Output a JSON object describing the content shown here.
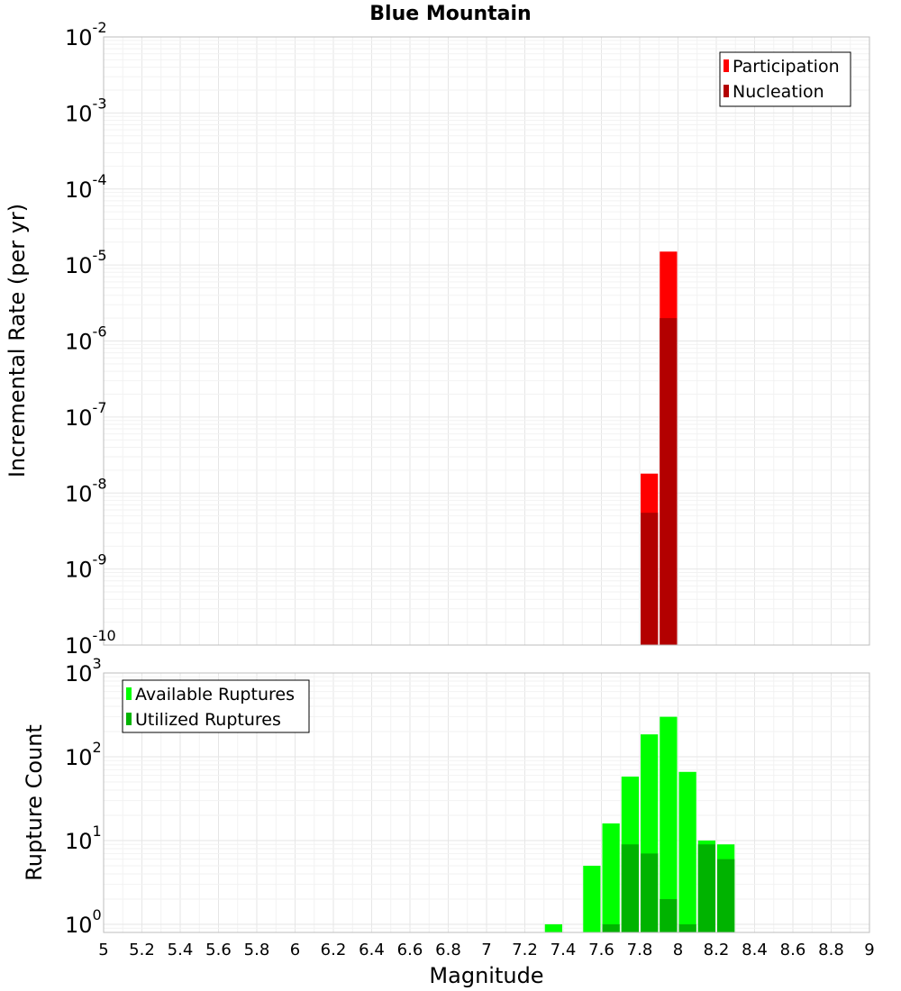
{
  "chart_data": [
    {
      "type": "bar",
      "title": "Blue Mountain",
      "xlabel": "Magnitude",
      "ylabel": "Incremental Rate (per yr)",
      "yscale": "log",
      "ylim": [
        1e-10,
        0.01
      ],
      "xlim": [
        5,
        9
      ],
      "grid": true,
      "legend_position": "top-right",
      "series": [
        {
          "name": "Participation",
          "color": "#ff0000",
          "x": [
            7.85,
            7.95
          ],
          "values": [
            1.8e-08,
            1.5e-05
          ]
        },
        {
          "name": "Nucleation",
          "color": "#b30000",
          "x": [
            7.85,
            7.95
          ],
          "values": [
            5.5e-09,
            2e-06
          ]
        }
      ]
    },
    {
      "type": "bar",
      "xlabel": "Magnitude",
      "ylabel": "Rupture Count",
      "yscale": "log",
      "ylim": [
        0.8,
        1000
      ],
      "xlim": [
        5,
        9
      ],
      "grid": true,
      "legend_position": "top-left",
      "series": [
        {
          "name": "Available Ruptures",
          "color": "#00ff00",
          "x": [
            7.35,
            7.55,
            7.65,
            7.75,
            7.85,
            7.95,
            8.05,
            8.15,
            8.25
          ],
          "values": [
            1,
            5,
            16,
            58,
            185,
            300,
            66,
            10,
            9
          ]
        },
        {
          "name": "Utilized Ruptures",
          "color": "#00b300",
          "x": [
            7.65,
            7.75,
            7.85,
            7.95,
            8.05,
            8.15,
            8.25
          ],
          "values": [
            1,
            9,
            7,
            2,
            1,
            9,
            6
          ]
        }
      ]
    }
  ],
  "xticks": [
    "5",
    "5.2",
    "5.4",
    "5.6",
    "5.8",
    "6",
    "6.2",
    "6.4",
    "6.6",
    "6.8",
    "7",
    "7.2",
    "7.4",
    "7.6",
    "7.8",
    "8",
    "8.2",
    "8.4",
    "8.6",
    "8.8",
    "9"
  ],
  "top_yticks": [
    {
      "base": "10",
      "exp": "-10"
    },
    {
      "base": "10",
      "exp": "-9"
    },
    {
      "base": "10",
      "exp": "-8"
    },
    {
      "base": "10",
      "exp": "-7"
    },
    {
      "base": "10",
      "exp": "-6"
    },
    {
      "base": "10",
      "exp": "-5"
    },
    {
      "base": "10",
      "exp": "-4"
    },
    {
      "base": "10",
      "exp": "-3"
    },
    {
      "base": "10",
      "exp": "-2"
    }
  ],
  "bottom_yticks": [
    {
      "base": "10",
      "exp": "0"
    },
    {
      "base": "10",
      "exp": "1"
    },
    {
      "base": "10",
      "exp": "2"
    },
    {
      "base": "10",
      "exp": "3"
    }
  ]
}
